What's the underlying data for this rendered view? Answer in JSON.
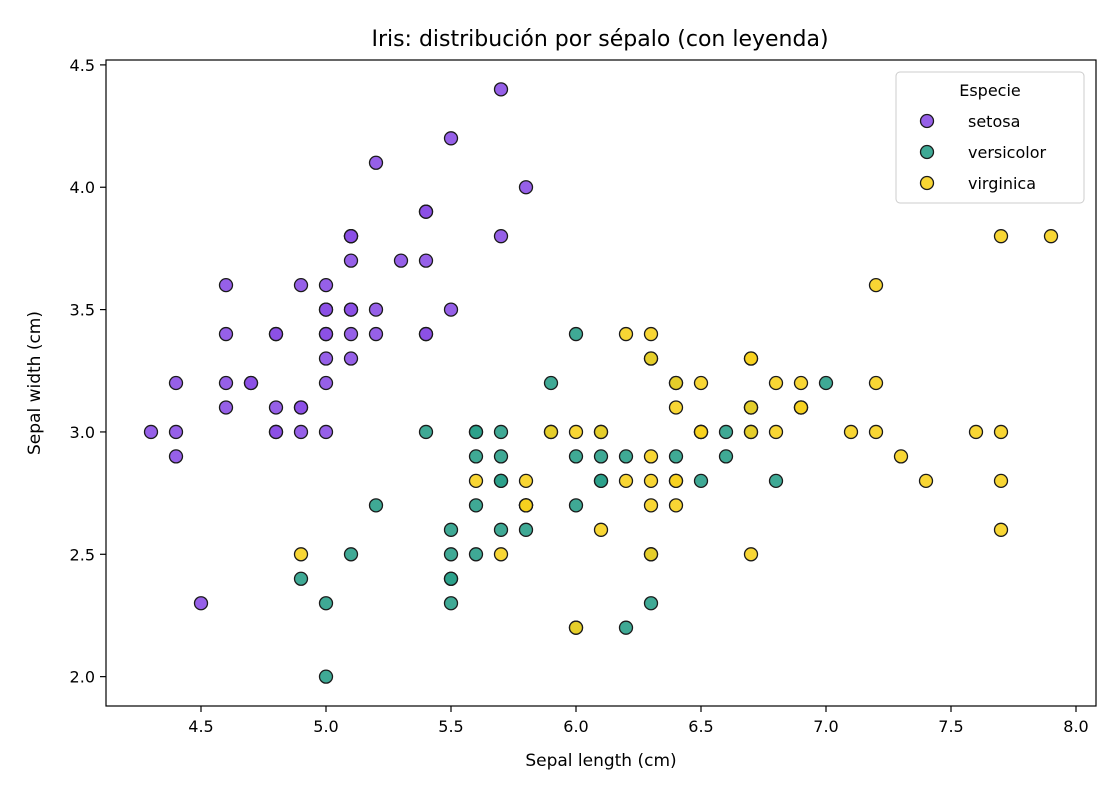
{
  "chart_data": {
    "type": "scatter",
    "title": "Iris: distribución por sépalo (con leyenda)",
    "xlabel": "Sepal length (cm)",
    "ylabel": "Sepal width (cm)",
    "xlim": [
      4.12,
      8.08
    ],
    "ylim": [
      1.88,
      4.52
    ],
    "xticks": [
      4.5,
      5.0,
      5.5,
      6.0,
      6.5,
      7.0,
      7.5,
      8.0
    ],
    "xtick_labels": [
      "4.5",
      "5.0",
      "5.5",
      "6.0",
      "6.5",
      "7.0",
      "7.5",
      "8.0"
    ],
    "yticks": [
      2.0,
      2.5,
      3.0,
      3.5,
      4.0,
      4.5
    ],
    "ytick_labels": [
      "2.0",
      "2.5",
      "3.0",
      "3.5",
      "4.0",
      "4.5"
    ],
    "grid": false,
    "legend": {
      "title": "Especie",
      "position": "top-right"
    },
    "series": [
      {
        "name": "setosa",
        "color": "#8b4fe6",
        "x": [
          5.1,
          4.9,
          4.7,
          4.6,
          5.0,
          5.4,
          4.6,
          5.0,
          4.4,
          4.9,
          5.4,
          4.8,
          4.8,
          4.3,
          5.8,
          5.7,
          5.4,
          5.1,
          5.7,
          5.1,
          5.4,
          5.1,
          4.6,
          5.1,
          4.8,
          5.0,
          5.0,
          5.2,
          5.2,
          4.7,
          4.8,
          5.4,
          5.2,
          5.5,
          4.9,
          5.0,
          5.5,
          4.9,
          4.4,
          5.1,
          5.0,
          4.5,
          4.4,
          5.0,
          5.1,
          4.8,
          5.1,
          4.6,
          5.3,
          5.0
        ],
        "y": [
          3.5,
          3.0,
          3.2,
          3.1,
          3.6,
          3.9,
          3.4,
          3.4,
          2.9,
          3.1,
          3.7,
          3.4,
          3.0,
          3.0,
          4.0,
          4.4,
          3.9,
          3.5,
          3.8,
          3.8,
          3.4,
          3.7,
          3.6,
          3.3,
          3.4,
          3.0,
          3.4,
          3.5,
          3.4,
          3.2,
          3.1,
          3.4,
          4.1,
          4.2,
          3.1,
          3.2,
          3.5,
          3.6,
          3.0,
          3.4,
          3.5,
          2.3,
          3.2,
          3.5,
          3.8,
          3.0,
          3.8,
          3.2,
          3.7,
          3.3
        ]
      },
      {
        "name": "versicolor",
        "color": "#2aa08a",
        "x": [
          7.0,
          6.4,
          6.9,
          5.5,
          6.5,
          5.7,
          6.3,
          4.9,
          6.6,
          5.2,
          5.0,
          5.9,
          6.0,
          6.1,
          5.6,
          6.7,
          5.6,
          5.8,
          6.2,
          5.6,
          5.9,
          6.1,
          6.3,
          6.1,
          6.4,
          6.6,
          6.8,
          6.7,
          6.0,
          5.7,
          5.5,
          5.5,
          5.8,
          6.0,
          5.4,
          6.0,
          6.7,
          6.3,
          5.6,
          5.5,
          5.5,
          6.1,
          5.8,
          5.0,
          5.6,
          5.7,
          5.7,
          6.2,
          5.1,
          5.7
        ],
        "y": [
          3.2,
          3.2,
          3.1,
          2.3,
          2.8,
          2.8,
          3.3,
          2.4,
          2.9,
          2.7,
          2.0,
          3.0,
          2.2,
          2.9,
          2.9,
          3.1,
          3.0,
          2.7,
          2.2,
          2.5,
          3.2,
          2.8,
          2.5,
          2.8,
          2.9,
          3.0,
          2.8,
          3.0,
          2.9,
          2.6,
          2.4,
          2.4,
          2.7,
          2.7,
          3.0,
          3.4,
          3.1,
          2.3,
          3.0,
          2.5,
          2.6,
          3.0,
          2.6,
          2.3,
          2.7,
          3.0,
          2.9,
          2.9,
          2.5,
          2.8
        ]
      },
      {
        "name": "virginica",
        "color": "#f7d11e",
        "x": [
          6.3,
          5.8,
          7.1,
          6.3,
          6.5,
          7.6,
          4.9,
          7.3,
          6.7,
          7.2,
          6.5,
          6.4,
          6.8,
          5.7,
          5.8,
          6.4,
          6.5,
          7.7,
          7.7,
          6.0,
          6.9,
          5.6,
          7.7,
          6.3,
          6.7,
          7.2,
          6.2,
          6.1,
          6.4,
          7.2,
          7.4,
          7.9,
          6.4,
          6.3,
          6.1,
          7.7,
          6.3,
          6.4,
          6.0,
          6.9,
          6.7,
          6.9,
          5.8,
          6.8,
          6.7,
          6.7,
          6.3,
          6.5,
          6.2,
          5.9
        ],
        "y": [
          3.3,
          2.7,
          3.0,
          2.9,
          3.0,
          3.0,
          2.5,
          2.9,
          2.5,
          3.6,
          3.2,
          2.7,
          3.0,
          2.5,
          2.8,
          3.2,
          3.0,
          3.8,
          2.6,
          2.2,
          3.2,
          2.8,
          2.8,
          2.7,
          3.3,
          3.2,
          2.8,
          3.0,
          2.8,
          3.0,
          2.8,
          3.8,
          2.8,
          2.8,
          2.6,
          3.0,
          3.4,
          3.1,
          3.0,
          3.1,
          3.1,
          3.1,
          2.7,
          3.2,
          3.3,
          3.0,
          2.5,
          3.0,
          3.4,
          3.0
        ]
      }
    ]
  }
}
